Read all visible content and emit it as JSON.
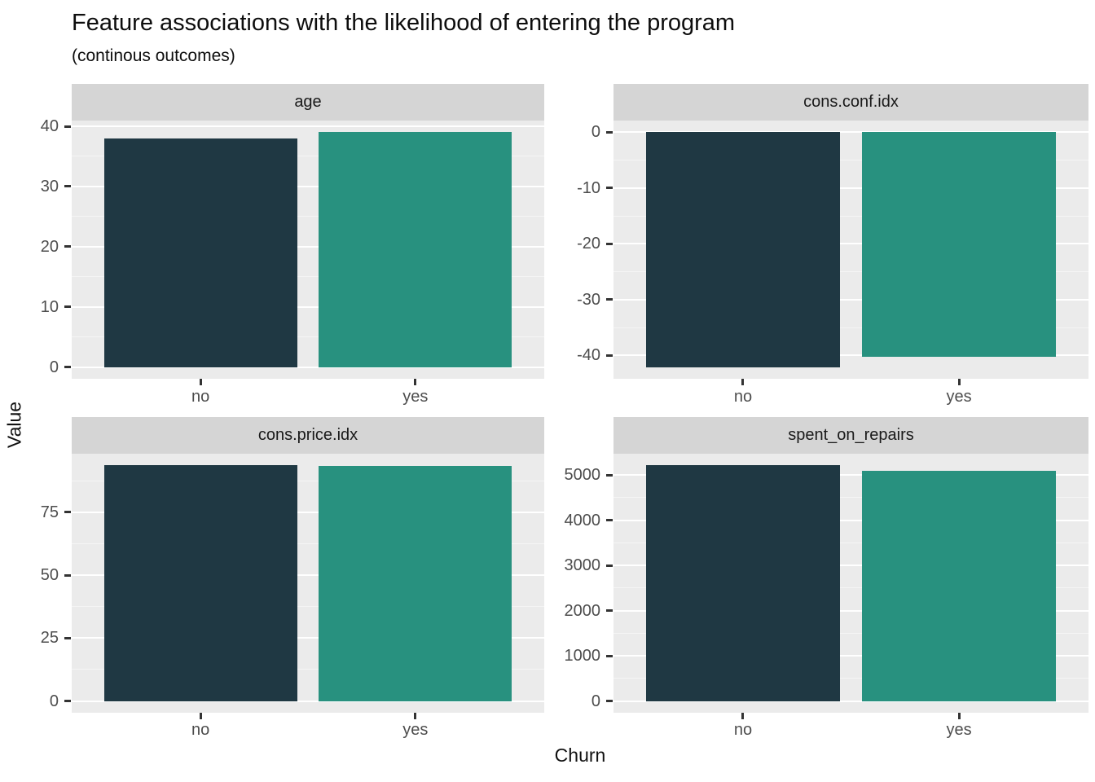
{
  "header": {
    "title": "Feature associations with the likelihood of entering the program",
    "subtitle": "(continous outcomes)"
  },
  "axes": {
    "x_label": "Churn",
    "y_label": "Value"
  },
  "colors": {
    "bar_no": "#1F3843",
    "bar_yes": "#28917F",
    "panel_bg": "#EBEBEB",
    "strip_bg": "#D5D5D5",
    "grid_major": "#FFFFFF",
    "grid_minor": "#F5F5F5",
    "tick_text": "#4D4D4D",
    "tick_mark": "#333333"
  },
  "chart_data": {
    "type": "bar",
    "title": "Feature associations with the likelihood of entering the program",
    "subtitle": "(continous outcomes)",
    "xlabel": "Churn",
    "ylabel": "Value",
    "categories": [
      "no",
      "yes"
    ],
    "legend": "none",
    "grid": true,
    "facets": [
      {
        "name": "age",
        "values": {
          "no": 38,
          "yes": 39
        },
        "yticks": [
          0,
          10,
          20,
          30,
          40
        ],
        "ylim": [
          -1.95,
          40.95
        ]
      },
      {
        "name": "cons.conf.idx",
        "values": {
          "no": -42.1,
          "yes": -40.3
        },
        "yticks": [
          -40,
          -30,
          -20,
          -10,
          0
        ],
        "ylim": [
          -44.2,
          2.1
        ]
      },
      {
        "name": "cons.price.idx",
        "values": {
          "no": 93.6,
          "yes": 93.3
        },
        "yticks": [
          0,
          25,
          50,
          75
        ],
        "ylim": [
          -4.68,
          98.28
        ]
      },
      {
        "name": "spent_on_repairs",
        "values": {
          "no": 5210,
          "yes": 5100
        },
        "yticks": [
          0,
          1000,
          2000,
          3000,
          4000,
          5000
        ],
        "ylim": [
          -260.5,
          5470.5
        ]
      }
    ]
  }
}
